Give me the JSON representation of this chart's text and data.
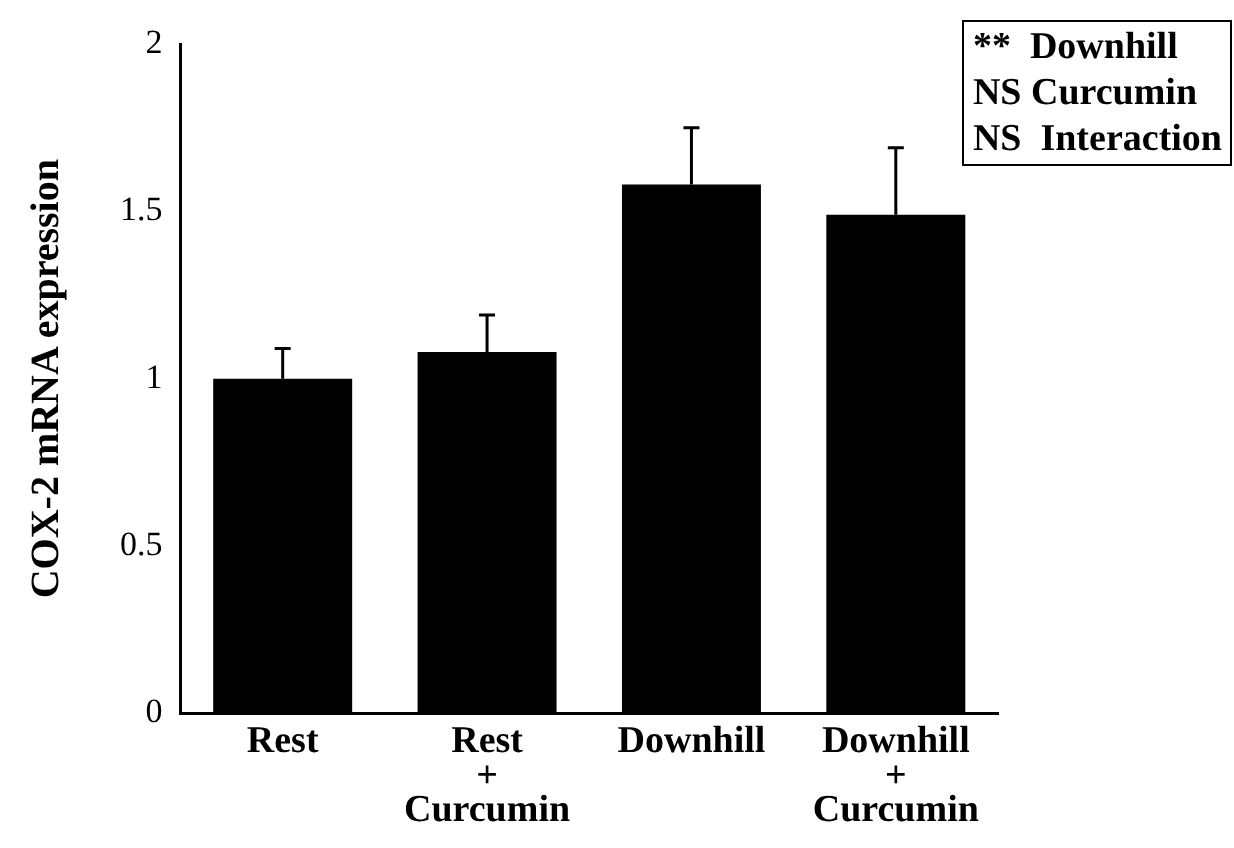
{
  "chart_data": {
    "type": "bar",
    "ylabel": "COX-2 mRNA expression",
    "categories": [
      "Rest",
      "Rest\n+\nCurcumin",
      "Downhill",
      "Downhill\n+\nCurcumin"
    ],
    "values": [
      1.0,
      1.08,
      1.58,
      1.49
    ],
    "errors": [
      [
        1.0,
        1.09
      ],
      [
        1.08,
        1.19
      ],
      [
        1.58,
        1.75
      ],
      [
        1.49,
        1.69
      ]
    ],
    "color": "#000000",
    "ylim": [
      0,
      2
    ],
    "yticks": [
      0,
      0.5,
      1,
      1.5,
      2
    ],
    "grid": false,
    "legend": false,
    "annotations": [
      "**  Downhill",
      "NS Curcumin",
      "NS  Interaction"
    ]
  }
}
